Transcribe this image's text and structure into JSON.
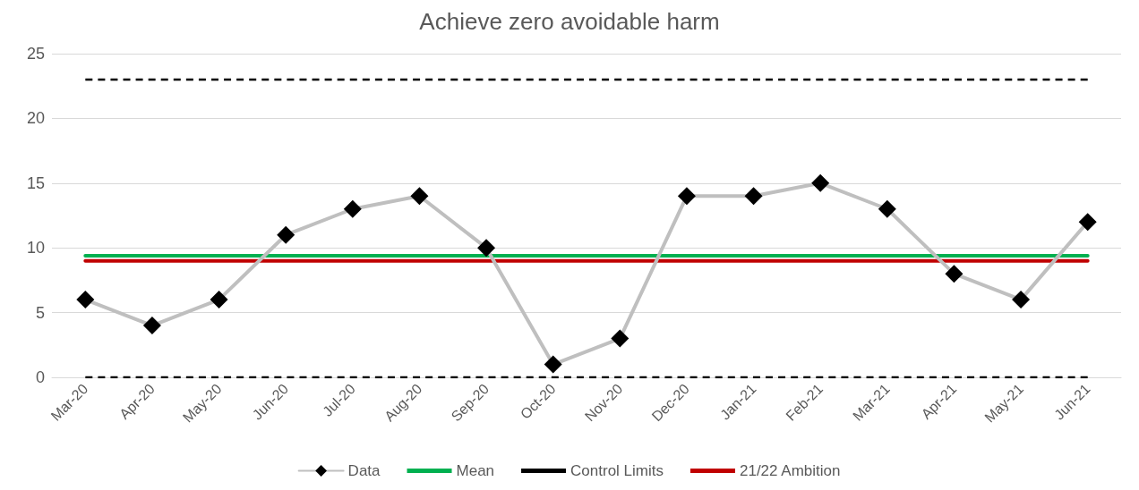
{
  "chart_data": {
    "type": "line",
    "title": "Achieve zero avoidable harm",
    "categories": [
      "Mar-20",
      "Apr-20",
      "May-20",
      "Jun-20",
      "Jul-20",
      "Aug-20",
      "Sep-20",
      "Oct-20",
      "Nov-20",
      "Dec-20",
      "Jan-21",
      "Feb-21",
      "Mar-21",
      "Apr-21",
      "May-21",
      "Jun-21"
    ],
    "series": [
      {
        "name": "Data",
        "color": "#bfbfbf",
        "colors": [
          "#000000",
          "#000000",
          "#000000",
          "#000000",
          "#000000",
          "#000000",
          "#000000",
          "#000000",
          "#000000",
          "#000000",
          "#000000",
          "#000000",
          "#000000",
          "#000000",
          "#000000",
          "#000000"
        ],
        "marker": "diamond",
        "line_style": "solid",
        "values": [
          6,
          4,
          6,
          11,
          13,
          14,
          10,
          1,
          3,
          14,
          14,
          15,
          13,
          8,
          6,
          12
        ]
      },
      {
        "name": "Mean",
        "color": "#00b050",
        "marker": "none",
        "line_style": "solid",
        "values": [
          9.4,
          9.4,
          9.4,
          9.4,
          9.4,
          9.4,
          9.4,
          9.4,
          9.4,
          9.4,
          9.4,
          9.4,
          9.4,
          9.4,
          9.4,
          9.4
        ]
      },
      {
        "name": "Control Limits",
        "color": "#000000",
        "marker": "none",
        "line_style": "dashed",
        "values": [
          23,
          23,
          23,
          23,
          23,
          23,
          23,
          23,
          23,
          23,
          23,
          23,
          23,
          23,
          23,
          23
        ]
      },
      {
        "name": "21/22 Ambition",
        "color": "#c00000",
        "marker": "none",
        "line_style": "solid",
        "values": [
          9,
          9,
          9,
          9,
          9,
          9,
          9,
          9,
          9,
          9,
          9,
          9,
          9,
          9,
          9,
          9
        ]
      },
      {
        "color": "#000000",
        "marker": "none",
        "line_style": "dashed",
        "values": [
          0,
          0,
          0,
          0,
          0,
          0,
          0,
          0,
          0,
          0,
          0,
          0,
          0,
          0,
          0,
          0
        ]
      }
    ],
    "ylim": [
      0,
      25
    ],
    "yticks": [
      0,
      5,
      10,
      15,
      20,
      25
    ],
    "grid": "y",
    "legend": "bottom"
  }
}
